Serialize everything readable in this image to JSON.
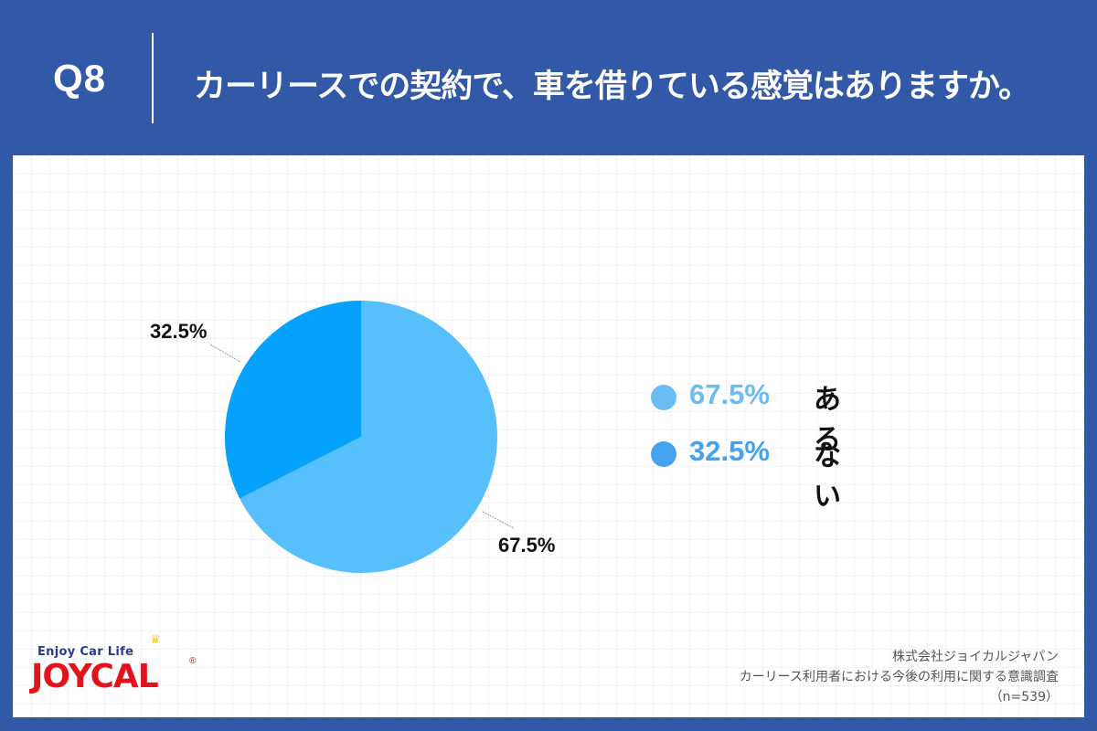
{
  "header": {
    "question_number": "Q8",
    "question_text": "カーリースでの契約で、車を借りている感覚はありますか。"
  },
  "colors": {
    "background": "#3258a8",
    "slice_aru": "#56bffc",
    "slice_nai": "#04a2fd",
    "legend_aru": "#6cbcf4",
    "legend_nai": "#46a2ee",
    "leader_line": "#999999"
  },
  "chart_data": {
    "type": "pie",
    "title": "カーリースでの契約で、車を借りている感覚はありますか。",
    "categories": [
      "ある",
      "ない"
    ],
    "values": [
      67.5,
      32.5
    ],
    "unit": "%",
    "data_labels": [
      "67.5%",
      "32.5%"
    ],
    "legend_position": "right",
    "n": 539
  },
  "pie_labels": {
    "aru": "67.5%",
    "nai": "32.5%"
  },
  "legend": {
    "items": [
      {
        "pct": "67.5%",
        "label": "ある",
        "color": "#6cbcf4"
      },
      {
        "pct": "32.5%",
        "label": "ない",
        "color": "#46a2ee"
      }
    ]
  },
  "logo": {
    "tagline": "Enjoy Car Life",
    "wordmark": "JOYCAL",
    "registered": "®",
    "crown": "♛"
  },
  "source": {
    "company": "株式会社ジョイカルジャパン",
    "survey": "カーリース利用者における今後の利用に関する意識調査",
    "sample": "（n=539）"
  }
}
